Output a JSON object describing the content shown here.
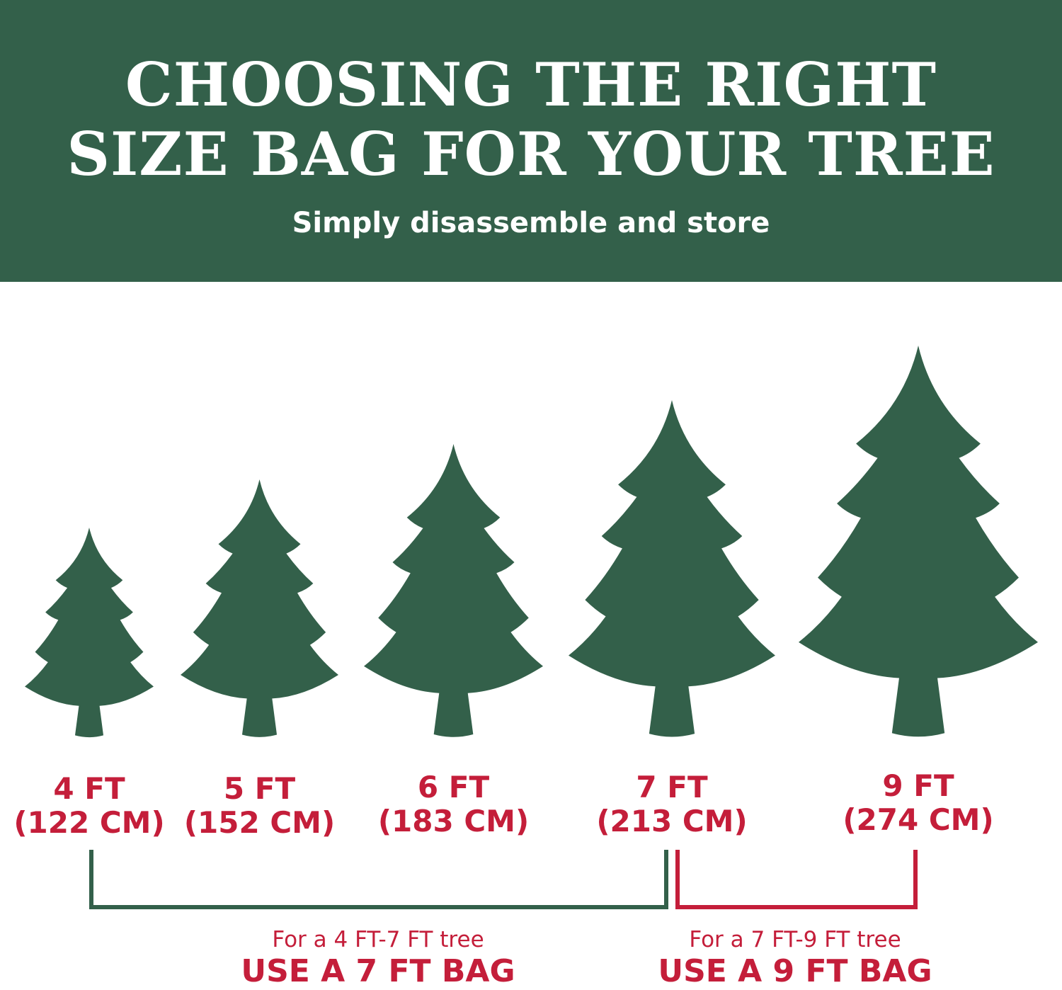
{
  "colors": {
    "brand_green": "#33604a",
    "accent_red": "#c41e3a",
    "background": "#ffffff"
  },
  "header": {
    "title_line1": "CHOOSING THE RIGHT",
    "title_line2": "SIZE BAG FOR YOUR TREE",
    "subtitle": "Simply disassemble and store"
  },
  "trees": [
    {
      "icon": "tree-icon",
      "height_ft": "4 FT",
      "height_cm": "(122 CM)"
    },
    {
      "icon": "tree-icon",
      "height_ft": "5 FT",
      "height_cm": "(152 CM)"
    },
    {
      "icon": "tree-icon",
      "height_ft": "6 FT",
      "height_cm": "(183 CM)"
    },
    {
      "icon": "tree-icon",
      "height_ft": "7 FT",
      "height_cm": "(213 CM)"
    },
    {
      "icon": "tree-icon",
      "height_ft": "9 FT",
      "height_cm": "(274 CM)"
    }
  ],
  "recommendations": [
    {
      "range": "For a 4 FT-7 FT tree",
      "bag": "USE A 7 FT BAG",
      "bracket_color": "#33604a"
    },
    {
      "range": "For a 7 FT-9 FT tree",
      "bag": "USE A 9 FT BAG",
      "bracket_color": "#c41e3a"
    }
  ]
}
